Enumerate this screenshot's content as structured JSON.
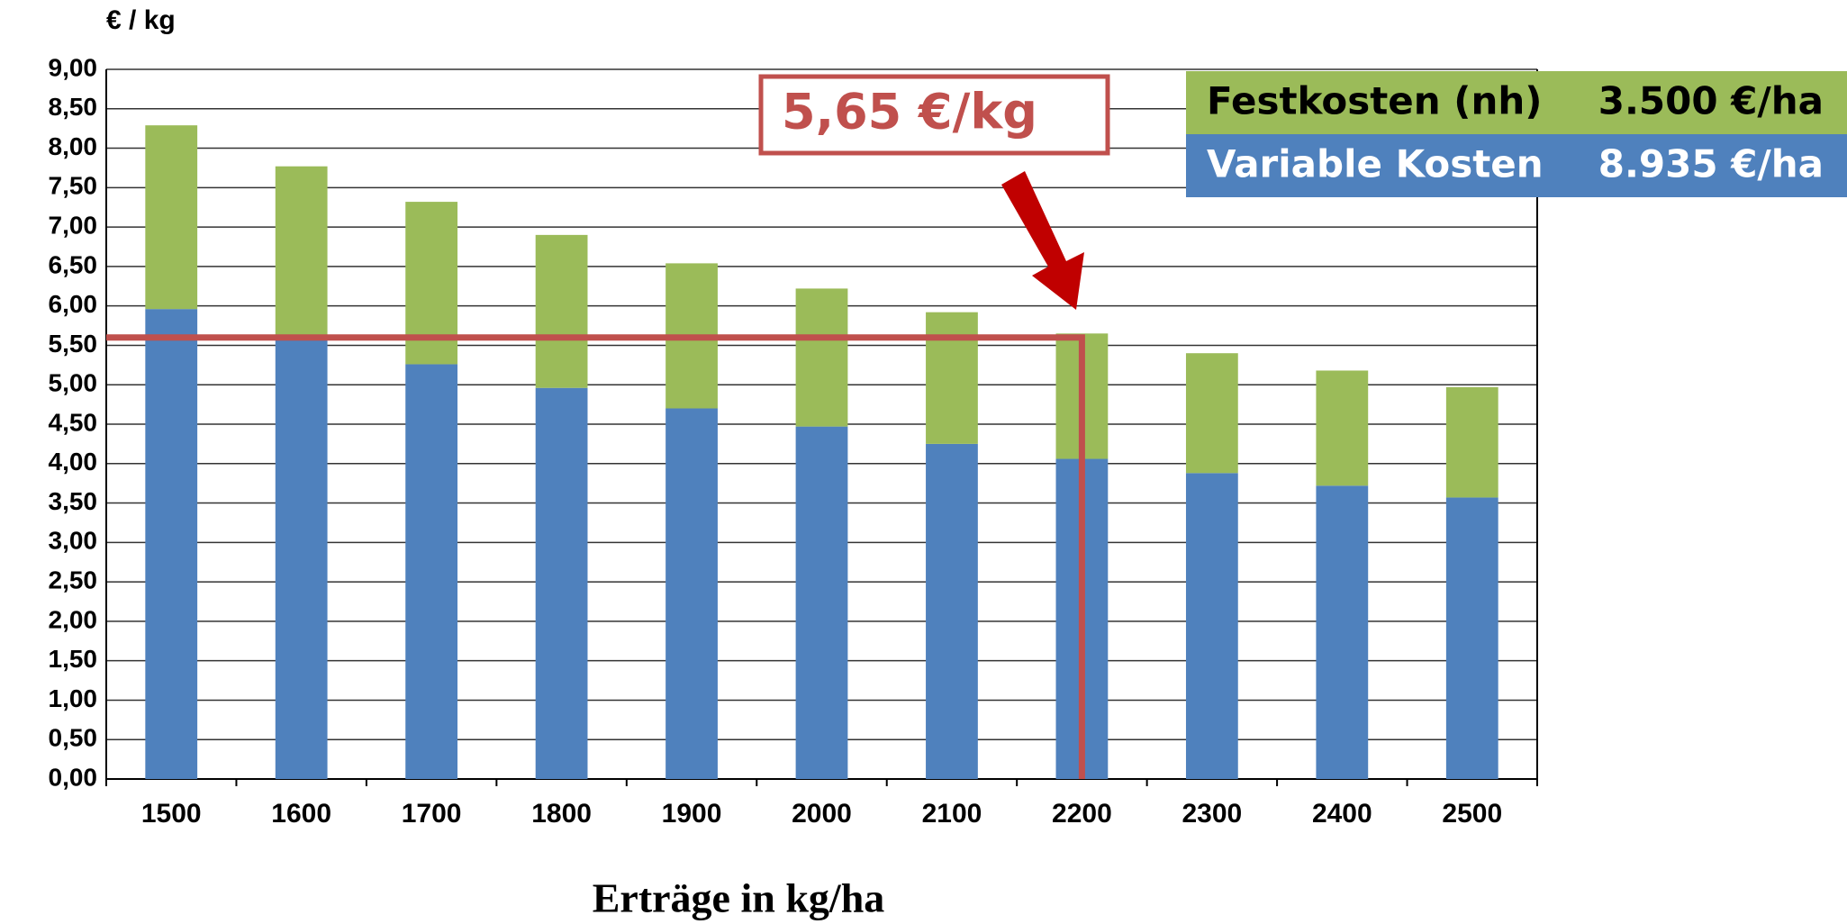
{
  "chart_data": {
    "type": "stacked_bar",
    "y_unit": "€ / kg",
    "x_label": "Erträge in kg/ha",
    "categories": [
      "1500",
      "1600",
      "1700",
      "1800",
      "1900",
      "2000",
      "2100",
      "2200",
      "2300",
      "2400",
      "2500"
    ],
    "series": [
      {
        "name": "Variable Kosten",
        "amount": "8.935 €/ha",
        "color": "#4f81bd",
        "text_color": "#ffffff",
        "values": [
          5.96,
          5.58,
          5.26,
          4.96,
          4.7,
          4.47,
          4.25,
          4.06,
          3.88,
          3.72,
          3.57
        ]
      },
      {
        "name": "Festkosten (nh)",
        "amount": "3.500 €/ha",
        "color": "#9bbb59",
        "text_color": "#000000",
        "values": [
          2.33,
          2.19,
          2.06,
          1.94,
          1.84,
          1.75,
          1.67,
          1.59,
          1.52,
          1.46,
          1.4
        ]
      }
    ],
    "ylim": [
      0,
      9
    ],
    "yticks": [
      {
        "value": 0,
        "label": "0,00"
      },
      {
        "value": 0.5,
        "label": "0,50"
      },
      {
        "value": 1,
        "label": "1,00"
      },
      {
        "value": 1.5,
        "label": "1,50"
      },
      {
        "value": 2,
        "label": "2,00"
      },
      {
        "value": 2.5,
        "label": "2,50"
      },
      {
        "value": 3,
        "label": "3,00"
      },
      {
        "value": 3.5,
        "label": "3,50"
      },
      {
        "value": 4,
        "label": "4,00"
      },
      {
        "value": 4.5,
        "label": "4,50"
      },
      {
        "value": 5,
        "label": "5,00"
      },
      {
        "value": 5.5,
        "label": "5,50"
      },
      {
        "value": 6,
        "label": "6,00"
      },
      {
        "value": 6.5,
        "label": "6,50"
      },
      {
        "value": 7,
        "label": "7,00"
      },
      {
        "value": 7.5,
        "label": "7,50"
      },
      {
        "value": 8,
        "label": "8,00"
      },
      {
        "value": 8.5,
        "label": "8,50"
      },
      {
        "value": 9,
        "label": "9,00"
      }
    ],
    "grid": true,
    "annotation": {
      "text": "5,65 €/kg",
      "x": "2200",
      "y": 5.6,
      "color": "#c0504d",
      "arrow_color": "#c00000"
    }
  }
}
